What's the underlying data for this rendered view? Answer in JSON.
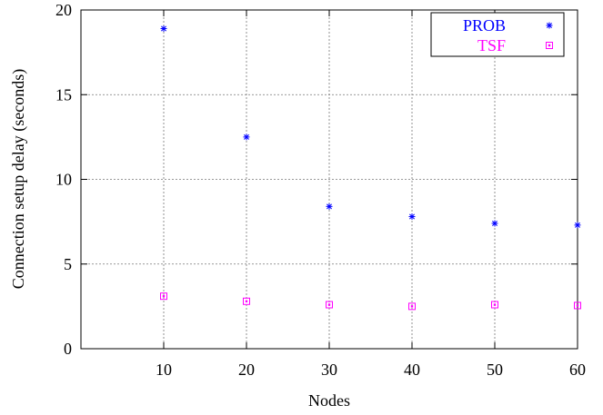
{
  "chart_data": {
    "type": "scatter",
    "xlabel": "Nodes",
    "ylabel": "Connection setup delay (seconds)",
    "xlim": [
      0,
      60
    ],
    "ylim": [
      0,
      20
    ],
    "xticks": [
      10,
      20,
      30,
      40,
      50,
      60
    ],
    "yticks": [
      0,
      5,
      10,
      15,
      20
    ],
    "grid": true,
    "legend_position": "top-right",
    "series": [
      {
        "name": "PROB",
        "marker": "asterisk",
        "color": "#0000ff",
        "points": [
          {
            "x": 10,
            "y": 18.9
          },
          {
            "x": 20,
            "y": 12.5
          },
          {
            "x": 30,
            "y": 8.4
          },
          {
            "x": 40,
            "y": 7.8
          },
          {
            "x": 50,
            "y": 7.4
          },
          {
            "x": 60,
            "y": 7.3
          }
        ]
      },
      {
        "name": "TSF",
        "marker": "square",
        "color": "#ff00ff",
        "points": [
          {
            "x": 10,
            "y": 3.1
          },
          {
            "x": 20,
            "y": 2.8
          },
          {
            "x": 30,
            "y": 2.6
          },
          {
            "x": 40,
            "y": 2.5
          },
          {
            "x": 50,
            "y": 2.6
          },
          {
            "x": 60,
            "y": 2.55
          }
        ]
      }
    ]
  }
}
